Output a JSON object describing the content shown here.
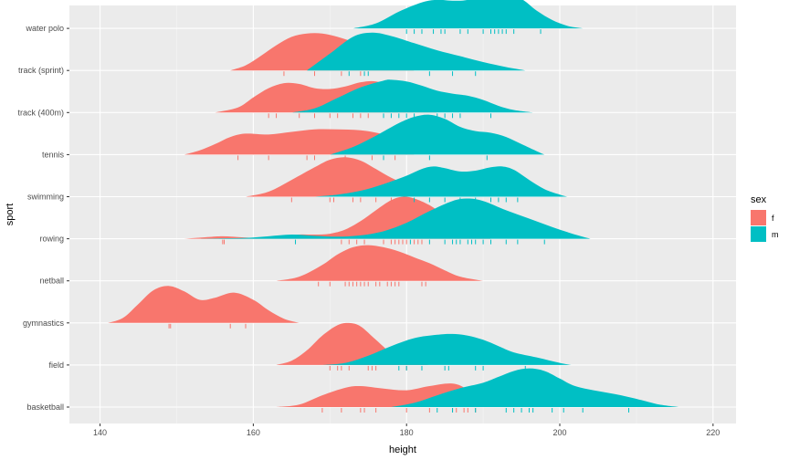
{
  "chart_data": {
    "type": "ridgeline",
    "xlabel": "height",
    "ylabel": "sport",
    "xlim": [
      136,
      223
    ],
    "x_ticks": [
      140,
      160,
      180,
      200,
      220
    ],
    "categories": [
      "basketball",
      "field",
      "gymnastics",
      "netball",
      "rowing",
      "swimming",
      "tennis",
      "track (400m)",
      "track (sprint)",
      "water polo"
    ],
    "grid": true,
    "legend": {
      "title": "sex",
      "position": "right",
      "entries": [
        {
          "label": "f",
          "color": "#F8766D"
        },
        {
          "label": "m",
          "color": "#00BFC4"
        }
      ]
    },
    "series": [
      {
        "name": "f",
        "color": "#F8766D",
        "ridges": [
          {
            "sport": "basketball",
            "x": [
              163,
              166,
              169,
              172,
              174,
              177,
              180,
              183,
              186,
              188,
              190
            ],
            "density": [
              0,
              0.06,
              0.28,
              0.46,
              0.5,
              0.44,
              0.4,
              0.5,
              0.56,
              0.4,
              0
            ]
          },
          {
            "sport": "field",
            "x": [
              163,
              165,
              167,
              169,
              171,
              172.5,
              174,
              176,
              178,
              180,
              183
            ],
            "density": [
              0,
              0.1,
              0.35,
              0.7,
              0.95,
              1.0,
              0.92,
              0.6,
              0.28,
              0.08,
              0
            ]
          },
          {
            "sport": "gymnastics",
            "x": [
              141,
              143,
              145,
              147,
              149,
              151,
              153,
              155,
              157.5,
              160,
              162,
              164,
              166
            ],
            "density": [
              0,
              0.12,
              0.45,
              0.78,
              0.88,
              0.75,
              0.55,
              0.6,
              0.72,
              0.55,
              0.3,
              0.1,
              0
            ]
          },
          {
            "sport": "netball",
            "x": [
              163,
              166,
              169,
              171,
              173,
              175,
              177,
              179,
              181,
              183,
              185,
              187,
              190
            ],
            "density": [
              0,
              0.1,
              0.38,
              0.63,
              0.8,
              0.85,
              0.8,
              0.7,
              0.56,
              0.42,
              0.25,
              0.1,
              0
            ]
          },
          {
            "sport": "rowing",
            "x": [
              151,
              154,
              156,
              158,
              160,
              162,
              164,
              166,
              168,
              170,
              172,
              174,
              176,
              178,
              179.5,
              181,
              183,
              185,
              187,
              189,
              191
            ],
            "density": [
              0,
              0.04,
              0.06,
              0.04,
              0.02,
              0.03,
              0.06,
              0.1,
              0.1,
              0.12,
              0.22,
              0.42,
              0.68,
              0.92,
              1.0,
              0.96,
              0.8,
              0.55,
              0.3,
              0.1,
              0
            ]
          },
          {
            "sport": "swimming",
            "x": [
              159,
              162,
              165,
              168,
              170,
              172,
              174,
              176,
              178,
              180,
              182,
              184,
              187
            ],
            "density": [
              0,
              0.12,
              0.4,
              0.7,
              0.88,
              0.94,
              0.86,
              0.66,
              0.45,
              0.3,
              0.18,
              0.08,
              0
            ]
          },
          {
            "sport": "tennis",
            "x": [
              151,
              153,
              155,
              157,
              159,
              162,
              165,
              168,
              171,
              174,
              177,
              179,
              181
            ],
            "density": [
              0,
              0.1,
              0.25,
              0.42,
              0.5,
              0.48,
              0.54,
              0.6,
              0.6,
              0.58,
              0.48,
              0.3,
              0
            ]
          },
          {
            "sport": "track (400m)",
            "x": [
              155,
              158,
              160,
              162,
              164,
              166,
              168,
              170,
              172,
              174,
              176,
              178,
              180,
              182,
              184
            ],
            "density": [
              0,
              0.12,
              0.36,
              0.58,
              0.7,
              0.68,
              0.58,
              0.56,
              0.62,
              0.72,
              0.74,
              0.6,
              0.38,
              0.15,
              0
            ]
          },
          {
            "sport": "track (sprint)",
            "x": [
              157,
              159,
              161,
              163,
              165,
              167,
              169,
              171,
              173,
              175,
              177,
              179,
              181
            ],
            "density": [
              0,
              0.12,
              0.35,
              0.6,
              0.8,
              0.88,
              0.88,
              0.8,
              0.68,
              0.52,
              0.32,
              0.12,
              0
            ]
          }
        ]
      },
      {
        "name": "m",
        "color": "#00BFC4",
        "ridges": [
          {
            "sport": "basketball",
            "x": [
              178,
              181,
              184,
              187,
              190,
              192,
              194,
              196,
              198,
              200,
              202,
              205,
              208,
              211,
              213,
              215.5
            ],
            "density": [
              0,
              0.1,
              0.28,
              0.45,
              0.58,
              0.72,
              0.86,
              0.92,
              0.86,
              0.68,
              0.5,
              0.38,
              0.28,
              0.15,
              0.06,
              0
            ]
          },
          {
            "sport": "field",
            "x": [
              169,
              172,
              175,
              178,
              181,
              184,
              186,
              188,
              190,
              192,
              194,
              197,
              200,
              201.5
            ],
            "density": [
              0,
              0.05,
              0.22,
              0.45,
              0.64,
              0.72,
              0.74,
              0.7,
              0.6,
              0.45,
              0.3,
              0.18,
              0.05,
              0
            ]
          },
          {
            "sport": "rowing",
            "x": [
              153,
              156,
              159,
              162,
              165,
              168,
              171,
              174,
              177,
              180,
              183,
              186,
              188,
              190,
              193,
              196,
              199,
              202,
              204
            ],
            "density": [
              0,
              0.01,
              0.02,
              0.06,
              0.1,
              0.07,
              0.05,
              0.08,
              0.18,
              0.38,
              0.66,
              0.9,
              0.96,
              0.9,
              0.68,
              0.48,
              0.28,
              0.1,
              0
            ]
          },
          {
            "sport": "swimming",
            "x": [
              168,
              171,
              174,
              177,
              180,
              182,
              183.5,
              185,
              187,
              189,
              191,
              192.5,
              194,
              196,
              198,
              200,
              201
            ],
            "density": [
              0,
              0.05,
              0.14,
              0.3,
              0.5,
              0.66,
              0.72,
              0.68,
              0.6,
              0.62,
              0.7,
              0.72,
              0.64,
              0.4,
              0.18,
              0.05,
              0
            ]
          },
          {
            "sport": "tennis",
            "x": [
              170,
              173,
              176,
              179,
              181,
              183,
              185,
              187,
              189,
              191,
              193,
              195,
              197,
              198
            ],
            "density": [
              0,
              0.18,
              0.45,
              0.75,
              0.9,
              0.95,
              0.85,
              0.66,
              0.56,
              0.52,
              0.42,
              0.25,
              0.08,
              0
            ]
          },
          {
            "sport": "track (400m)",
            "x": [
              165,
              168,
              171,
              174,
              177,
              178,
              180,
              182,
              184,
              186,
              188,
              190,
              192,
              194,
              196.5
            ],
            "density": [
              0,
              0.1,
              0.35,
              0.6,
              0.76,
              0.78,
              0.74,
              0.64,
              0.52,
              0.45,
              0.4,
              0.3,
              0.16,
              0.06,
              0
            ]
          },
          {
            "sport": "track (sprint)",
            "x": [
              167,
              170,
              173,
              175.5,
              178,
              181,
              184,
              187,
              190,
              193,
              195.5
            ],
            "density": [
              0,
              0.4,
              0.8,
              0.9,
              0.82,
              0.65,
              0.48,
              0.34,
              0.2,
              0.08,
              0
            ]
          },
          {
            "sport": "water polo",
            "x": [
              173,
              176,
              179,
              182,
              184,
              186,
              188,
              190,
              192.5,
              195,
              197,
              199,
              201,
              203
            ],
            "density": [
              0,
              0.12,
              0.4,
              0.62,
              0.68,
              0.66,
              0.68,
              0.8,
              0.86,
              0.7,
              0.42,
              0.2,
              0.06,
              0
            ]
          }
        ]
      }
    ],
    "rugs": [
      {
        "sport": "basketball",
        "sex": "f",
        "x": [
          169,
          171.5,
          174,
          174.5,
          176,
          180,
          183,
          186,
          186.5,
          187.5,
          188,
          189
        ]
      },
      {
        "sport": "basketball",
        "sex": "m",
        "x": [
          184,
          186,
          189,
          193,
          194,
          195,
          196,
          196.5,
          199,
          200.5,
          203,
          209
        ]
      },
      {
        "sport": "field",
        "sex": "f",
        "x": [
          170,
          171,
          171.5,
          172.5,
          175,
          175.5,
          176,
          180
        ]
      },
      {
        "sport": "field",
        "sex": "m",
        "x": [
          179,
          180,
          182,
          185,
          185.5,
          189,
          190,
          195.5
        ]
      },
      {
        "sport": "gymnastics",
        "sex": "f",
        "x": [
          149,
          149.2,
          157,
          159
        ]
      },
      {
        "sport": "netball",
        "sex": "f",
        "x": [
          168.5,
          170,
          172,
          172.5,
          173,
          173.5,
          174,
          174.5,
          175,
          176,
          176.5,
          177.5,
          178,
          178.5,
          179,
          182,
          182.5
        ]
      },
      {
        "sport": "rowing",
        "sex": "f",
        "x": [
          156,
          156.2,
          171.5,
          172.5,
          173.5,
          174.5,
          177,
          178,
          178.5,
          179,
          179.5,
          180,
          181,
          181.5,
          182
        ]
      },
      {
        "sport": "rowing",
        "sex": "m",
        "x": [
          165.5,
          180.5,
          183,
          185,
          186,
          186.5,
          187,
          188,
          188.5,
          189,
          190,
          191,
          193,
          194.5,
          198
        ]
      },
      {
        "sport": "swimming",
        "sex": "f",
        "x": [
          165,
          170,
          170.5,
          173,
          174,
          176,
          178,
          180,
          180.5
        ]
      },
      {
        "sport": "swimming",
        "sex": "m",
        "x": [
          181,
          183,
          185,
          187,
          189,
          191,
          192,
          193,
          194.5
        ]
      },
      {
        "sport": "tennis",
        "sex": "f",
        "x": [
          158,
          162,
          167,
          168,
          172,
          175.5,
          178.5
        ]
      },
      {
        "sport": "tennis",
        "sex": "m",
        "x": [
          177,
          183,
          190.5
        ]
      },
      {
        "sport": "track (400m)",
        "sex": "f",
        "x": [
          162,
          163,
          166,
          168,
          170,
          171,
          173,
          174,
          175
        ]
      },
      {
        "sport": "track (400m)",
        "sex": "m",
        "x": [
          177,
          178,
          179,
          180,
          181,
          184,
          185,
          186,
          187,
          191
        ]
      },
      {
        "sport": "track (sprint)",
        "sex": "f",
        "x": [
          164,
          168,
          171.5,
          174
        ]
      },
      {
        "sport": "track (sprint)",
        "sex": "m",
        "x": [
          172.5,
          174.5,
          175,
          183,
          186,
          189
        ]
      },
      {
        "sport": "water polo",
        "sex": "m",
        "x": [
          180,
          181,
          182,
          183.5,
          184.5,
          185,
          187,
          188,
          190,
          191,
          191.5,
          192,
          192.5,
          193,
          194,
          197.5
        ]
      }
    ]
  }
}
